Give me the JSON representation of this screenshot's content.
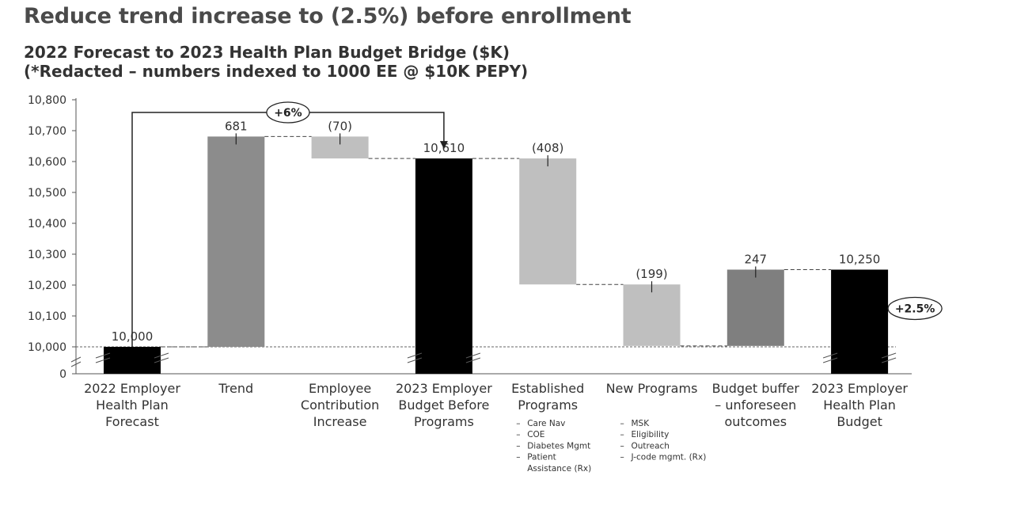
{
  "header": {
    "title": "Reduce trend increase to (2.5%) before enrollment",
    "subtitle_line1": "2022 Forecast to 2023 Health Plan Budget Bridge ($K)",
    "subtitle_line2": "(*Redacted – numbers indexed to 1000 EE @ $10K PEPY)"
  },
  "chart_data": {
    "type": "bar",
    "subtype": "waterfall",
    "title": "2022 Forecast to 2023 Health Plan Budget Bridge ($K)",
    "ylim": [
      10000,
      10800
    ],
    "yticks": [
      "10,800",
      "10,700",
      "10,600",
      "10,500",
      "10,400",
      "10,300",
      "10,200",
      "10,100",
      "10,000",
      "0"
    ],
    "axis_break": true,
    "bars": [
      {
        "category": [
          "2022 Employer",
          "Health Plan",
          "Forecast"
        ],
        "base": 10000,
        "top": 10000,
        "label": "10,000",
        "kind": "total",
        "color": "#000000",
        "details": []
      },
      {
        "category": [
          "Trend"
        ],
        "base": 10000,
        "top": 10681,
        "label": "681",
        "kind": "increase",
        "color": "#8c8c8c",
        "details": []
      },
      {
        "category": [
          "Employee",
          "Contribution",
          "Increase"
        ],
        "base": 10610,
        "top": 10681,
        "label": "(70)",
        "kind": "decrease",
        "color": "#bfbfbf",
        "details": []
      },
      {
        "category": [
          "2023 Employer",
          "Budget Before",
          "Programs"
        ],
        "base": 10000,
        "top": 10610,
        "label": "10,610",
        "kind": "total",
        "color": "#000000",
        "details": []
      },
      {
        "category": [
          "Established",
          "Programs"
        ],
        "base": 10202,
        "top": 10610,
        "label": "(408)",
        "kind": "decrease",
        "color": "#bfbfbf",
        "details": [
          [
            "Care Nav"
          ],
          [
            "COE"
          ],
          [
            "Diabetes Mgmt"
          ],
          [
            "Patient",
            "Assistance (Rx)"
          ]
        ]
      },
      {
        "category": [
          "New Programs"
        ],
        "base": 10003,
        "top": 10202,
        "label": "(199)",
        "kind": "decrease",
        "color": "#bfbfbf",
        "details": [
          [
            "MSK"
          ],
          [
            "Eligibility"
          ],
          [
            "Outreach"
          ],
          [
            "J-code mgmt. (Rx)"
          ]
        ]
      },
      {
        "category": [
          "Budget buffer",
          "– unforeseen",
          "outcomes"
        ],
        "base": 10003,
        "top": 10250,
        "label": "247",
        "kind": "increase",
        "color": "#7f7f7f",
        "details": []
      },
      {
        "category": [
          "2023 Employer",
          "Health Plan",
          "Budget"
        ],
        "base": 10000,
        "top": 10250,
        "label": "10,250",
        "kind": "total",
        "color": "#000000",
        "details": []
      }
    ],
    "annotations": {
      "bracket_label": "+6%",
      "callout_label": "+2.5%"
    }
  }
}
